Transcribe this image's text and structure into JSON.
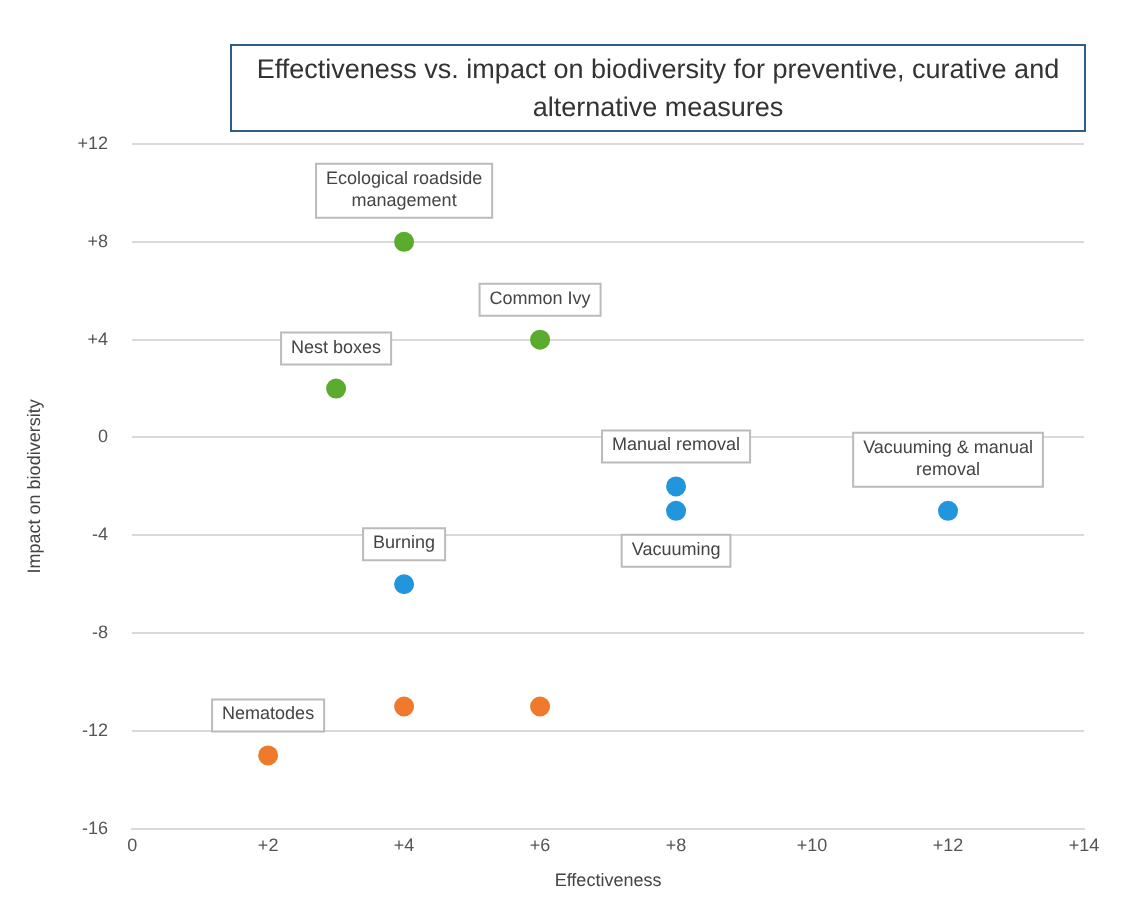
{
  "chart_data": {
    "type": "scatter",
    "title": "Effectiveness vs. impact on biodiversity for preventive, curative and alternative measures",
    "xlabel": "Effectiveness",
    "ylabel": "Impact on biodiversity",
    "series": [
      {
        "color": "#5aab2e",
        "x": [
          4,
          6,
          3
        ],
        "values": [
          8,
          4,
          2
        ]
      },
      {
        "color": "#2196dc",
        "x": [
          8,
          8,
          12,
          4
        ],
        "values": [
          -2,
          -3,
          -3,
          -6
        ]
      },
      {
        "color": "#ef7a2b",
        "x": [
          4,
          6,
          2
        ],
        "values": [
          -11,
          -11,
          -13
        ]
      }
    ],
    "xlim": [
      0,
      14
    ],
    "xticks": [
      0,
      {
        "value": 2,
        "label": "+2"
      },
      {
        "value": 4,
        "label": "+4"
      },
      {
        "value": 6,
        "label": "+6"
      },
      {
        "value": 8,
        "label": "+8"
      },
      {
        "value": 10,
        "label": "+10"
      },
      {
        "value": 12,
        "label": "+12"
      },
      {
        "value": 14,
        "label": "+14"
      }
    ],
    "ylim": [
      -16,
      12
    ],
    "yticks": [
      -16,
      -12,
      -8,
      -4,
      0,
      {
        "value": 4,
        "label": "+4"
      },
      {
        "value": 8,
        "label": "+8"
      },
      {
        "value": 12,
        "label": "+12"
      }
    ],
    "grid": "y",
    "marker": "circle",
    "annotations": [
      {
        "text": "Ecological roadside management",
        "x": 4,
        "y": 8
      },
      {
        "text": "Common Ivy",
        "x": 6,
        "y": 4
      },
      {
        "text": "Nest boxes",
        "x": 3,
        "y": 2
      },
      {
        "text": "Manual removal",
        "x": 8,
        "y": -2
      },
      {
        "text": "Vacuuming",
        "x": 8,
        "y": -3
      },
      {
        "text": "Vacuuming & manual removal",
        "x": 12,
        "y": -3
      },
      {
        "text": "Burning",
        "x": 4,
        "y": -6
      },
      {
        "text": "Nematodes",
        "x": 2,
        "y": -13
      }
    ]
  }
}
